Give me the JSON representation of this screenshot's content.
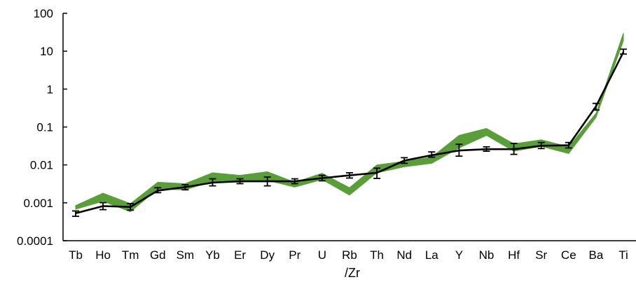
{
  "chart_data": {
    "type": "line",
    "y_scale": "log",
    "ylim": [
      0.0001,
      100
    ],
    "y_ticks": [
      "0.0001",
      "0.001",
      "0.01",
      "0.1",
      "1",
      "10",
      "100"
    ],
    "xlabel": "/Zr",
    "ylabel": "",
    "grid": false,
    "legend": "none",
    "categories": [
      "Tb",
      "Ho",
      "Tm",
      "Gd",
      "Sm",
      "Yb",
      "Er",
      "Dy",
      "Pr",
      "U",
      "Rb",
      "Th",
      "Nd",
      "La",
      "Y",
      "Nb",
      "Hf",
      "Sr",
      "Ce",
      "Ba",
      "Ti"
    ],
    "series": [
      {
        "kind": "band",
        "color": "#5a9e3a",
        "low": [
          0.00068,
          0.0011,
          0.00058,
          0.0023,
          0.0022,
          0.0037,
          0.0035,
          0.0039,
          0.0026,
          0.0041,
          0.0016,
          0.0062,
          0.0089,
          0.011,
          0.028,
          0.06,
          0.023,
          0.031,
          0.02,
          0.18,
          19
        ],
        "high": [
          0.00085,
          0.0018,
          0.00095,
          0.0035,
          0.0032,
          0.0062,
          0.0053,
          0.0066,
          0.0035,
          0.006,
          0.0025,
          0.01,
          0.0124,
          0.016,
          0.06,
          0.092,
          0.036,
          0.046,
          0.03,
          0.23,
          30
        ]
      },
      {
        "kind": "line",
        "color": "#000000",
        "values": [
          0.00053,
          0.00082,
          0.00078,
          0.0021,
          0.0026,
          0.0034,
          0.0037,
          0.0037,
          0.0037,
          0.0045,
          0.0053,
          0.0062,
          0.013,
          0.018,
          0.024,
          0.026,
          0.026,
          0.032,
          0.033,
          0.35,
          9.5
        ],
        "err_low": [
          0.00044,
          0.00066,
          0.00064,
          0.00185,
          0.0022,
          0.0028,
          0.0032,
          0.0028,
          0.0032,
          0.0038,
          0.0045,
          0.0044,
          0.011,
          0.016,
          0.017,
          0.023,
          0.019,
          0.027,
          0.028,
          0.28,
          8.4
        ],
        "err_high": [
          0.00061,
          0.00101,
          0.00095,
          0.0025,
          0.003,
          0.0043,
          0.0043,
          0.0048,
          0.0043,
          0.0053,
          0.0062,
          0.0082,
          0.0155,
          0.022,
          0.035,
          0.03,
          0.037,
          0.039,
          0.039,
          0.42,
          11.3
        ]
      }
    ]
  }
}
